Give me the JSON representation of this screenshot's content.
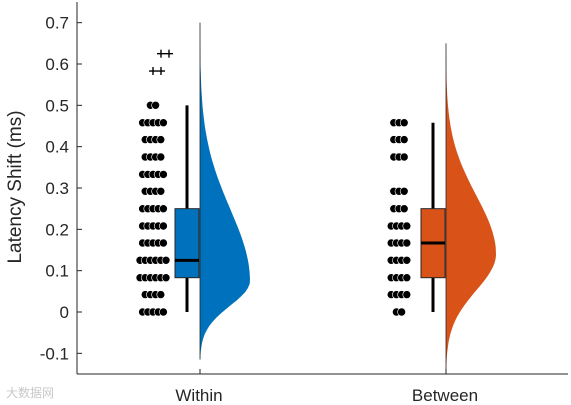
{
  "chart_data": {
    "type": "raincloud",
    "ylabel": "Latency Shift (ms)",
    "xlabel": "",
    "ylim": [
      -0.15,
      0.75
    ],
    "yticks": [
      -0.1,
      0,
      0.1,
      0.2,
      0.3,
      0.4,
      0.5,
      0.6,
      0.7
    ],
    "ytick_labels": [
      "-0.1",
      "0",
      "0.1",
      "0.2",
      "0.3",
      "0.4",
      "0.5",
      "0.6",
      "0.7"
    ],
    "categories": [
      "Within",
      "Between"
    ],
    "series": [
      {
        "category": "Within",
        "color": "#0072BD",
        "box": {
          "q1": 0.083,
          "median": 0.125,
          "q3": 0.25,
          "whisker_low": 0.0,
          "whisker_high": 0.5
        },
        "outliers": [
          0.583,
          0.583,
          0.625,
          0.625
        ],
        "density_peak": 0.075,
        "density_range": [
          -0.115,
          0.7
        ],
        "points": [
          {
            "y": 0.0,
            "n": 5
          },
          {
            "y": 0.042,
            "n": 4
          },
          {
            "y": 0.083,
            "n": 6
          },
          {
            "y": 0.125,
            "n": 6
          },
          {
            "y": 0.167,
            "n": 5
          },
          {
            "y": 0.208,
            "n": 5
          },
          {
            "y": 0.25,
            "n": 5
          },
          {
            "y": 0.292,
            "n": 4
          },
          {
            "y": 0.333,
            "n": 5
          },
          {
            "y": 0.375,
            "n": 4
          },
          {
            "y": 0.417,
            "n": 4
          },
          {
            "y": 0.458,
            "n": 5
          },
          {
            "y": 0.5,
            "n": 2
          }
        ]
      },
      {
        "category": "Between",
        "color": "#D95319",
        "box": {
          "q1": 0.083,
          "median": 0.167,
          "q3": 0.25,
          "whisker_low": 0.0,
          "whisker_high": 0.458
        },
        "outliers": [],
        "density_peak": 0.14,
        "density_range": [
          -0.14,
          0.65
        ],
        "points": [
          {
            "y": 0.0,
            "n": 2
          },
          {
            "y": 0.042,
            "n": 4
          },
          {
            "y": 0.083,
            "n": 4
          },
          {
            "y": 0.125,
            "n": 4
          },
          {
            "y": 0.167,
            "n": 4
          },
          {
            "y": 0.208,
            "n": 4
          },
          {
            "y": 0.25,
            "n": 3
          },
          {
            "y": 0.292,
            "n": 3
          },
          {
            "y": 0.375,
            "n": 3
          },
          {
            "y": 0.417,
            "n": 3
          },
          {
            "y": 0.458,
            "n": 3
          }
        ]
      }
    ],
    "grid": false,
    "legend": "none"
  },
  "watermark": "大数据网"
}
